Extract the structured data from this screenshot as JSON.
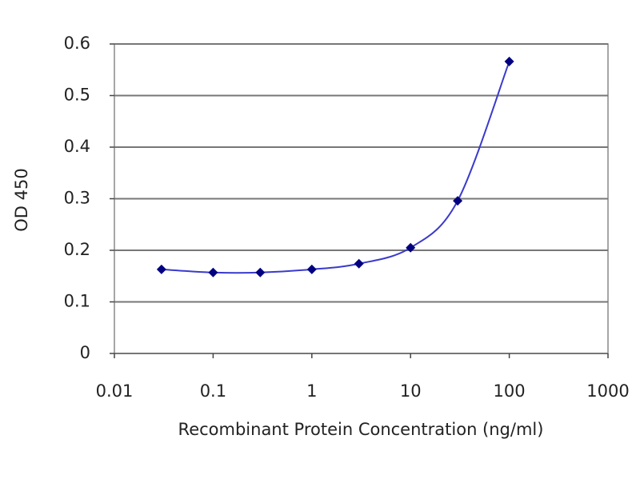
{
  "chart_data": {
    "type": "line",
    "x": [
      0.03,
      0.1,
      0.3,
      1,
      3,
      10,
      30,
      100
    ],
    "values": [
      0.163,
      0.157,
      0.157,
      0.163,
      0.174,
      0.205,
      0.296,
      0.566
    ],
    "color": "#000080",
    "line_color": "#3a3acc",
    "xscale": "log",
    "xlim": [
      0.01,
      1000
    ],
    "xticks": [
      0.01,
      0.1,
      1,
      10,
      100,
      1000
    ],
    "ylim": [
      0,
      0.6
    ],
    "yticks": [
      0,
      0.1,
      0.2,
      0.3,
      0.4,
      0.5,
      0.6
    ],
    "grid": true,
    "xlabel": "Recombinant Protein Concentration (ng/ml)",
    "ylabel": "OD 450"
  }
}
